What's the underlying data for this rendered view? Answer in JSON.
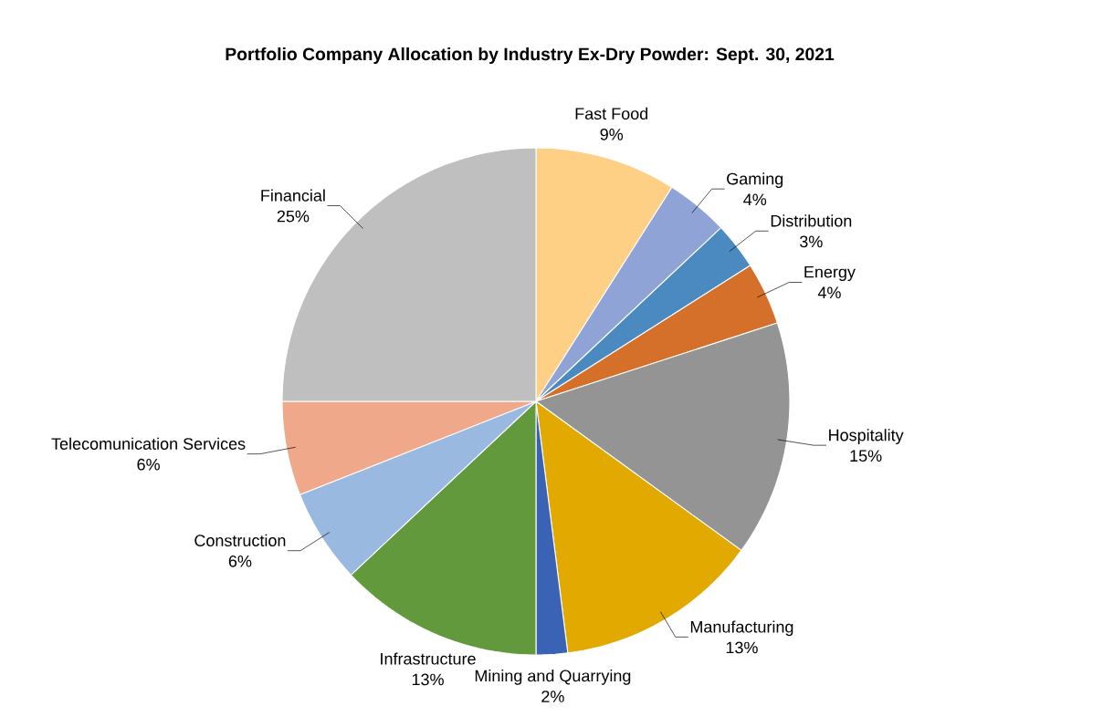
{
  "chart_data": {
    "type": "pie",
    "title": "Portfolio Company Allocation by Industry Ex-Dry Powder: Sept. 30, 2021",
    "categories": [
      "Fast Food",
      "Gaming",
      "Distribution",
      "Energy",
      "Hospitality",
      "Manufacturing",
      "Mining and Quarrying",
      "Infrastructure",
      "Construction",
      "Telecomunication Services",
      "Financial"
    ],
    "values": [
      9,
      4,
      3,
      4,
      15,
      13,
      2,
      13,
      6,
      6,
      25
    ],
    "value_labels": [
      "9%",
      "4%",
      "3%",
      "4%",
      "15%",
      "13%",
      "2%",
      "13%",
      "6%",
      "6%",
      "25%"
    ],
    "colors": [
      "#fdd086",
      "#8fa3d6",
      "#4a8ac0",
      "#d4702a",
      "#949494",
      "#e2a900",
      "#3a62b5",
      "#63993d",
      "#9ab9e0",
      "#f0a88a",
      "#bfbfbf"
    ]
  }
}
